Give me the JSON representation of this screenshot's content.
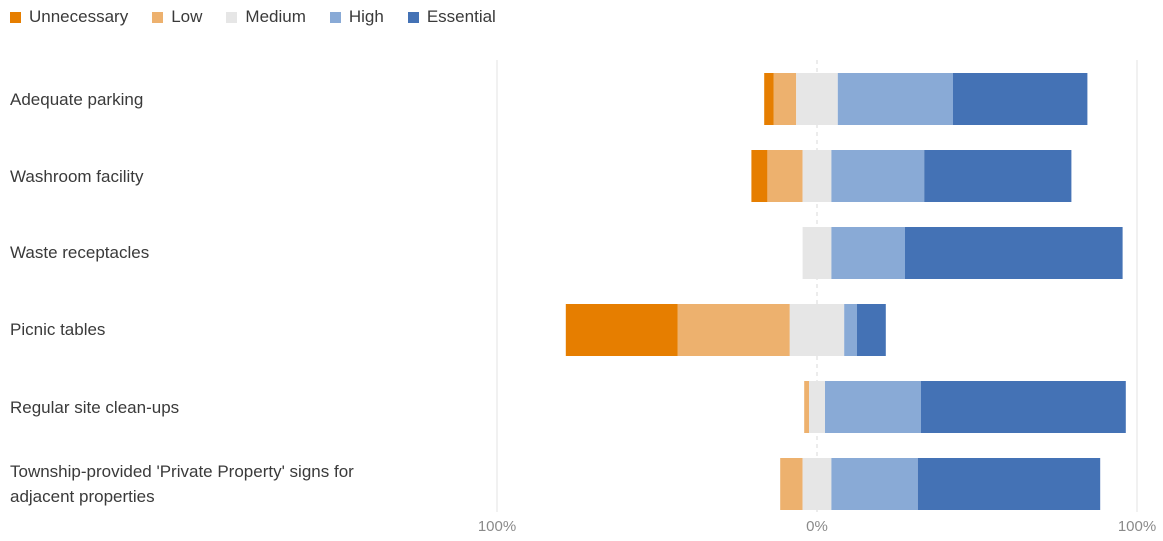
{
  "legend": [
    {
      "name": "Unnecessary",
      "color": "#e67e00"
    },
    {
      "name": "Low",
      "color": "#edb16e"
    },
    {
      "name": "Medium",
      "color": "#e6e6e6"
    },
    {
      "name": "High",
      "color": "#89aad6"
    },
    {
      "name": "Essential",
      "color": "#4472b5"
    }
  ],
  "chart_data": {
    "type": "bar",
    "orientation": "horizontal",
    "stacked": "diverging",
    "categories": [
      "Adequate parking",
      "Washroom facility",
      "Waste receptacles",
      "Picnic tables",
      "Regular site clean-ups",
      "Township-provided 'Private Property' signs for adjacent properties"
    ],
    "series": [
      {
        "name": "Unnecessary",
        "values": [
          3,
          5,
          0,
          35,
          0,
          0
        ]
      },
      {
        "name": "Low",
        "values": [
          7,
          11,
          0,
          35,
          1.5,
          7
        ]
      },
      {
        "name": "Medium",
        "values": [
          13,
          9,
          9,
          17,
          5,
          9
        ]
      },
      {
        "name": "High",
        "values": [
          36,
          29,
          23,
          4,
          30,
          27
        ]
      },
      {
        "name": "Essential",
        "values": [
          42,
          46,
          68,
          9,
          64,
          57
        ]
      }
    ],
    "xlim": [
      -100,
      100
    ],
    "x_tick_labels": [
      "100%",
      "0%",
      "100%"
    ],
    "grid": true,
    "legend_position": "top-left"
  }
}
